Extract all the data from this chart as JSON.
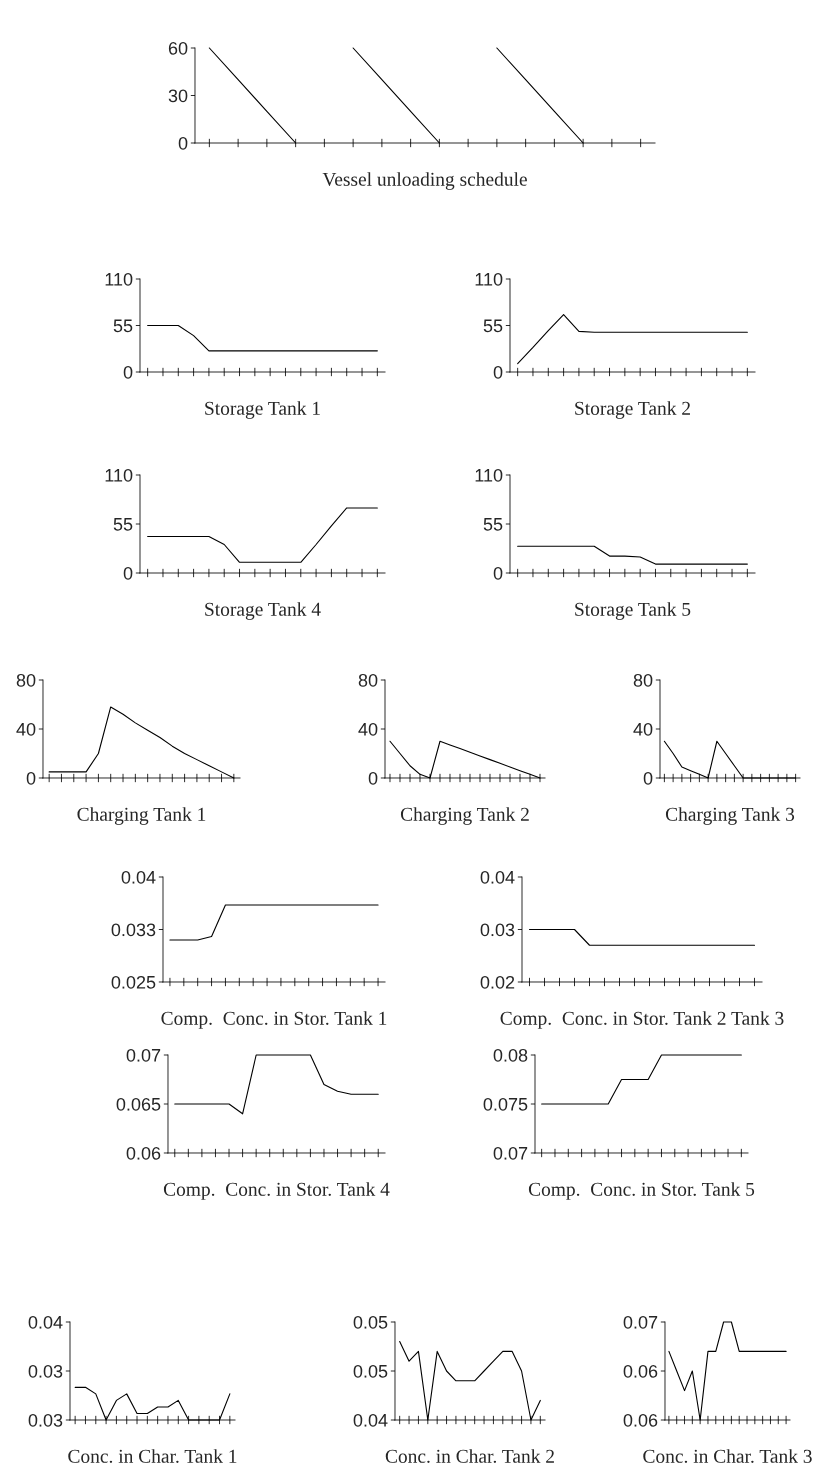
{
  "chart_data": [
    {
      "type": "line",
      "xlabel": "Vessel unloading schedule",
      "categories": [
        null,
        null,
        null,
        null,
        null,
        null,
        null,
        null,
        null,
        null,
        null,
        null,
        null,
        null,
        null,
        null
      ],
      "tick_labels": "y",
      "ylim": [
        0,
        60
      ],
      "yticks": [
        0,
        30,
        60
      ],
      "series": [
        {
          "color": "#000000",
          "values": [
            60,
            40,
            20,
            0,
            null,
            null,
            null,
            null,
            null,
            null,
            null,
            null,
            null,
            null,
            null,
            null
          ]
        },
        {
          "color": "#000000",
          "values": [
            null,
            null,
            null,
            null,
            null,
            60,
            40,
            20,
            0,
            null,
            null,
            null,
            null,
            null,
            null,
            null
          ]
        },
        {
          "color": "#000000",
          "values": [
            null,
            null,
            null,
            null,
            null,
            null,
            null,
            null,
            null,
            null,
            60,
            40,
            20,
            0,
            null,
            null
          ]
        }
      ]
    },
    {
      "type": "line",
      "xlabel": "Storage Tank 1",
      "categories": [
        null,
        null,
        null,
        null,
        null,
        null,
        null,
        null,
        null,
        null,
        null,
        null,
        null,
        null,
        null,
        null
      ],
      "tick_labels": "y",
      "ylim": [
        0,
        110
      ],
      "yticks": [
        0,
        55,
        110
      ],
      "series": [
        {
          "color": "#000000",
          "values": [
            55,
            55,
            55,
            43,
            25,
            25,
            25,
            25,
            25,
            25,
            25,
            25,
            25,
            25,
            25,
            25
          ]
        }
      ]
    },
    {
      "type": "line",
      "xlabel": "Storage Tank 2",
      "categories": [
        null,
        null,
        null,
        null,
        null,
        null,
        null,
        null,
        null,
        null,
        null,
        null,
        null,
        null,
        null,
        null
      ],
      "tick_labels": "y",
      "ylim": [
        0,
        110
      ],
      "yticks": [
        0,
        55,
        110
      ],
      "series": [
        {
          "color": "#000000",
          "values": [
            10,
            29,
            49,
            68,
            48,
            47,
            47,
            47,
            47,
            47,
            47,
            47,
            47,
            47,
            47,
            47
          ]
        }
      ]
    },
    {
      "type": "line",
      "xlabel": "Storage Tank 4",
      "categories": [
        null,
        null,
        null,
        null,
        null,
        null,
        null,
        null,
        null,
        null,
        null,
        null,
        null,
        null,
        null,
        null
      ],
      "tick_labels": "y",
      "ylim": [
        0,
        110
      ],
      "yticks": [
        0,
        55,
        110
      ],
      "series": [
        {
          "color": "#000000",
          "values": [
            41,
            41,
            41,
            41,
            41,
            32,
            12,
            12,
            12,
            12,
            12,
            32,
            53,
            73,
            73,
            73
          ]
        }
      ]
    },
    {
      "type": "line",
      "xlabel": "Storage Tank 5",
      "categories": [
        null,
        null,
        null,
        null,
        null,
        null,
        null,
        null,
        null,
        null,
        null,
        null,
        null,
        null,
        null,
        null
      ],
      "tick_labels": "y",
      "ylim": [
        0,
        110
      ],
      "yticks": [
        0,
        55,
        110
      ],
      "series": [
        {
          "color": "#000000",
          "values": [
            30,
            30,
            30,
            30,
            30,
            30,
            19,
            19,
            18,
            10,
            10,
            10,
            10,
            10,
            10,
            10
          ]
        }
      ]
    },
    {
      "type": "line",
      "xlabel": "Charging Tank 1",
      "categories": [
        null,
        null,
        null,
        null,
        null,
        null,
        null,
        null,
        null,
        null,
        null,
        null,
        null,
        null,
        null,
        null
      ],
      "tick_labels": "y",
      "ylim": [
        0,
        80
      ],
      "yticks": [
        0,
        40,
        80
      ],
      "series": [
        {
          "color": "#000000",
          "values": [
            5,
            5,
            5,
            5,
            20,
            58,
            52,
            45,
            39,
            33,
            26,
            20,
            15,
            10,
            5,
            0
          ]
        }
      ]
    },
    {
      "type": "line",
      "xlabel": "Charging Tank 2",
      "categories": [
        null,
        null,
        null,
        null,
        null,
        null,
        null,
        null,
        null,
        null,
        null,
        null,
        null,
        null,
        null,
        null
      ],
      "tick_labels": "y",
      "ylim": [
        0,
        80
      ],
      "yticks": [
        0,
        40,
        80
      ],
      "series": [
        {
          "color": "#000000",
          "values": [
            30,
            20,
            10,
            3,
            0,
            30,
            27,
            24,
            21,
            18,
            15,
            12,
            9,
            6,
            3,
            0
          ]
        }
      ]
    },
    {
      "type": "line",
      "xlabel": "Charging Tank 3",
      "categories": [
        null,
        null,
        null,
        null,
        null,
        null,
        null,
        null,
        null,
        null,
        null,
        null,
        null,
        null,
        null,
        null
      ],
      "tick_labels": "y",
      "ylim": [
        0,
        80
      ],
      "yticks": [
        0,
        40,
        80
      ],
      "series": [
        {
          "color": "#000000",
          "values": [
            30,
            20,
            9,
            6,
            3,
            0,
            30,
            20,
            10,
            0,
            0,
            0,
            0,
            0,
            0,
            0
          ]
        }
      ]
    },
    {
      "type": "line",
      "xlabel": "Comp.  Conc. in Stor. Tank 1",
      "categories": [
        null,
        null,
        null,
        null,
        null,
        null,
        null,
        null,
        null,
        null,
        null,
        null,
        null,
        null,
        null,
        null
      ],
      "tick_labels": "y",
      "ylim": [
        0.025,
        0.04
      ],
      "yticks": [
        0.025,
        {
          "value": 0.0325,
          "label": "0.033"
        },
        0.04
      ],
      "series": [
        {
          "color": "#000000",
          "values": [
            0.031,
            0.031,
            0.031,
            0.0315,
            0.036,
            0.036,
            0.036,
            0.036,
            0.036,
            0.036,
            0.036,
            0.036,
            0.036,
            0.036,
            0.036,
            0.036
          ]
        }
      ]
    },
    {
      "type": "line",
      "xlabel": "Comp.  Conc. in Stor. Tank 2 Tank 3",
      "categories": [
        null,
        null,
        null,
        null,
        null,
        null,
        null,
        null,
        null,
        null,
        null,
        null,
        null,
        null,
        null,
        null
      ],
      "tick_labels": "y",
      "ylim": [
        0.02,
        0.04
      ],
      "yticks": [
        0.02,
        0.03,
        0.04
      ],
      "series": [
        {
          "color": "#000000",
          "values": [
            0.03,
            0.03,
            0.03,
            0.03,
            0.027,
            0.027,
            0.027,
            0.027,
            0.027,
            0.027,
            0.027,
            0.027,
            0.027,
            0.027,
            0.027,
            0.027
          ]
        }
      ]
    },
    {
      "type": "line",
      "xlabel": "Comp.  Conc. in Stor. Tank 4",
      "categories": [
        null,
        null,
        null,
        null,
        null,
        null,
        null,
        null,
        null,
        null,
        null,
        null,
        null,
        null,
        null,
        null
      ],
      "tick_labels": "y",
      "ylim": [
        0.06,
        0.07
      ],
      "yticks": [
        0.06,
        0.065,
        0.07
      ],
      "series": [
        {
          "color": "#000000",
          "values": [
            0.065,
            0.065,
            0.065,
            0.065,
            0.065,
            0.064,
            0.07,
            0.07,
            0.07,
            0.07,
            0.07,
            0.067,
            0.0663,
            0.066,
            0.066,
            0.066
          ]
        }
      ]
    },
    {
      "type": "line",
      "xlabel": "Comp.  Conc. in Stor. Tank 5",
      "categories": [
        null,
        null,
        null,
        null,
        null,
        null,
        null,
        null,
        null,
        null,
        null,
        null,
        null,
        null,
        null,
        null
      ],
      "tick_labels": "y",
      "ylim": [
        0.07,
        0.08
      ],
      "yticks": [
        0.07,
        0.075,
        0.08
      ],
      "series": [
        {
          "color": "#000000",
          "values": [
            0.075,
            0.075,
            0.075,
            0.075,
            0.075,
            0.075,
            0.0775,
            0.0775,
            0.0775,
            0.08,
            0.08,
            0.08,
            0.08,
            0.08,
            0.08,
            0.08
          ]
        }
      ]
    },
    {
      "type": "line",
      "xlabel": "Conc. in Char. Tank 1",
      "categories": [
        null,
        null,
        null,
        null,
        null,
        null,
        null,
        null,
        null,
        null,
        null,
        null,
        null,
        null,
        null,
        null
      ],
      "tick_labels": "y",
      "ylim": [
        0.025,
        0.04
      ],
      "yticks": [
        {
          "value": 0.025,
          "label": "0.03"
        },
        {
          "value": 0.0325,
          "label": "0.03"
        },
        0.04
      ],
      "series": [
        {
          "color": "#000000",
          "values": [
            0.03,
            0.03,
            0.029,
            0.025,
            0.028,
            0.029,
            0.026,
            0.026,
            0.027,
            0.027,
            0.028,
            0.025,
            0.025,
            0.025,
            0.025,
            0.029
          ]
        }
      ]
    },
    {
      "type": "line",
      "xlabel": "Conc. in Char. Tank 2",
      "categories": [
        null,
        null,
        null,
        null,
        null,
        null,
        null,
        null,
        null,
        null,
        null,
        null,
        null,
        null,
        null,
        null
      ],
      "tick_labels": "y",
      "ylim": [
        0.04,
        0.05
      ],
      "yticks": [
        0.04,
        {
          "value": 0.045,
          "label": "0.05"
        },
        0.05
      ],
      "series": [
        {
          "color": "#000000",
          "values": [
            0.048,
            0.046,
            0.047,
            0.04,
            0.047,
            0.045,
            0.044,
            0.044,
            0.044,
            0.045,
            0.046,
            0.047,
            0.047,
            0.045,
            0.04,
            0.042
          ]
        }
      ]
    },
    {
      "type": "line",
      "xlabel": "Conc. in Char. Tank 3",
      "categories": [
        null,
        null,
        null,
        null,
        null,
        null,
        null,
        null,
        null,
        null,
        null,
        null,
        null,
        null,
        null,
        null
      ],
      "tick_labels": "y",
      "ylim": [
        0.06,
        0.07
      ],
      "yticks": [
        0.06,
        {
          "value": 0.065,
          "label": "0.06"
        },
        0.07
      ],
      "series": [
        {
          "color": "#000000",
          "values": [
            0.067,
            0.065,
            0.063,
            0.065,
            0.06,
            0.067,
            0.067,
            0.07,
            0.07,
            0.067,
            0.067,
            0.067,
            0.067,
            0.067,
            0.067,
            0.067
          ]
        }
      ]
    }
  ]
}
